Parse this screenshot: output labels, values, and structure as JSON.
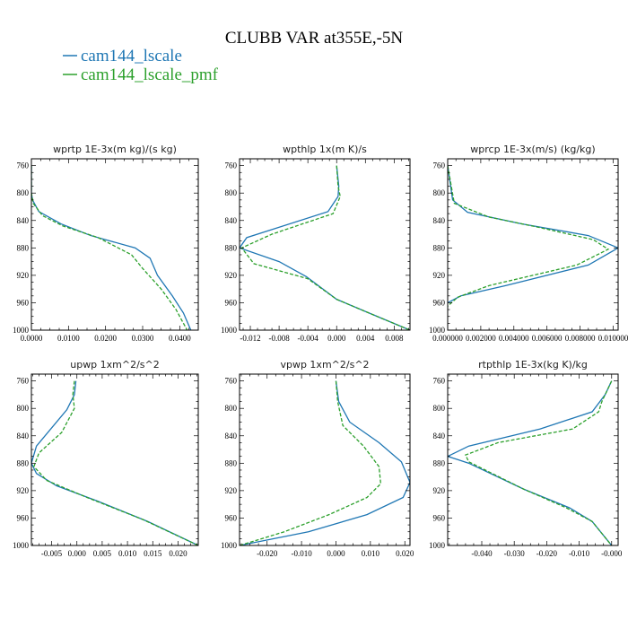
{
  "title": "CLUBB VAR at355E,-5N",
  "legend": [
    {
      "label": "cam144_lscale",
      "color": "#1f77b4"
    },
    {
      "label": "cam144_lscale_pmf",
      "color": "#2ca02c"
    }
  ],
  "chart_data": [
    {
      "type": "line",
      "title": "wprtp  1E-3x(m kg)/(s kg)",
      "xlim": [
        0,
        0.045
      ],
      "ylim": [
        1000,
        750
      ],
      "xticks": [
        0,
        0.01,
        0.02,
        0.03,
        0.04
      ],
      "xtick_labels": [
        "0.0000",
        "0.0100",
        "0.0200",
        "0.0300",
        "0.0400"
      ],
      "yticks": [
        760,
        800,
        840,
        880,
        920,
        960,
        1000
      ],
      "ytick_labels": [
        "760",
        "800",
        "840",
        "880",
        "920",
        "960",
        "1000"
      ],
      "series": [
        {
          "name": "cam144_lscale",
          "x": [
            0,
            0,
            0.0003,
            0.002,
            0.008,
            0.016,
            0.028,
            0.032,
            0.034,
            0.038,
            0.041,
            0.043
          ],
          "y": [
            760,
            800,
            810,
            827,
            845,
            862,
            880,
            895,
            920,
            950,
            975,
            1000
          ]
        },
        {
          "name": "cam144_lscale_pmf",
          "x": [
            0,
            0,
            0.0005,
            0.003,
            0.0085,
            0.018,
            0.027,
            0.03,
            0.035,
            0.039,
            0.042
          ],
          "y": [
            760,
            800,
            815,
            833,
            848,
            865,
            890,
            910,
            940,
            970,
            1000
          ]
        }
      ]
    },
    {
      "type": "line",
      "title": "wpthlp  1x(m K)/s",
      "xlim": [
        -0.0135,
        0.0102
      ],
      "ylim": [
        1000,
        750
      ],
      "xticks": [
        -0.012,
        -0.008,
        -0.004,
        0,
        0.004,
        0.008
      ],
      "xtick_labels": [
        "-0.012",
        "-0.008",
        "-0.004",
        "0.000",
        "0.004",
        "0.008"
      ],
      "yticks": [
        760,
        800,
        840,
        880,
        920,
        960,
        1000
      ],
      "ytick_labels": [
        "760",
        "800",
        "840",
        "880",
        "920",
        "960",
        "1000"
      ],
      "series": [
        {
          "name": "cam144_lscale",
          "x": [
            0,
            0.0003,
            0.0002,
            -0.0012,
            -0.0125,
            -0.0135,
            -0.008,
            -0.0042,
            0,
            0.0045,
            0.0102
          ],
          "y": [
            760,
            790,
            805,
            827,
            865,
            880,
            900,
            922,
            955,
            975,
            1000
          ]
        },
        {
          "name": "cam144_lscale_pmf",
          "x": [
            0,
            0.0002,
            0.0005,
            -0.0005,
            -0.009,
            -0.0132,
            -0.0115,
            -0.004,
            0,
            0.0045,
            0.0102
          ],
          "y": [
            760,
            790,
            805,
            830,
            860,
            880,
            903,
            925,
            955,
            975,
            1000
          ]
        }
      ]
    },
    {
      "type": "line",
      "title": "wprcp  1E-3x(m/s) (kg/kg)",
      "xlim": [
        0,
        0.0103
      ],
      "ylim": [
        1000,
        750
      ],
      "xticks": [
        0,
        0.002,
        0.004,
        0.006,
        0.008,
        0.01
      ],
      "xtick_labels": [
        "0.000000",
        "0.002000",
        "0.004000",
        "0.006000",
        "0.008000",
        "0.010000"
      ],
      "yticks": [
        760,
        800,
        840,
        880,
        920,
        960,
        1000
      ],
      "ytick_labels": [
        "760",
        "800",
        "840",
        "880",
        "920",
        "960",
        "1000"
      ],
      "series": [
        {
          "name": "cam144_lscale",
          "x": [
            0,
            0.0003,
            0.0012,
            0.0045,
            0.0085,
            0.0103,
            0.0085,
            0.0035,
            0.0008,
            0
          ],
          "y": [
            760,
            810,
            828,
            845,
            862,
            880,
            905,
            935,
            950,
            960
          ]
        },
        {
          "name": "cam144_lscale_pmf",
          "x": [
            0,
            0.0004,
            0.0025,
            0.0055,
            0.0088,
            0.0097,
            0.0078,
            0.0025,
            0.0006,
            0
          ],
          "y": [
            760,
            815,
            835,
            850,
            868,
            882,
            905,
            935,
            952,
            965
          ]
        }
      ]
    },
    {
      "type": "line",
      "title": "upwp  1xm^2/s^2",
      "xlim": [
        -0.009,
        0.024
      ],
      "ylim": [
        1000,
        750
      ],
      "xticks": [
        -0.005,
        0,
        0.005,
        0.01,
        0.015,
        0.02
      ],
      "xtick_labels": [
        "-0.005",
        "0.000",
        "0.005",
        "0.010",
        "0.015",
        "0.020"
      ],
      "yticks": [
        760,
        800,
        840,
        880,
        920,
        960,
        1000
      ],
      "ytick_labels": [
        "760",
        "800",
        "840",
        "880",
        "920",
        "960",
        "1000"
      ],
      "series": [
        {
          "name": "cam144_lscale",
          "x": [
            -0.0002,
            -0.0005,
            -0.002,
            -0.008,
            -0.009,
            -0.008,
            -0.004,
            0.004,
            0.014,
            0.024
          ],
          "y": [
            760,
            780,
            802,
            855,
            880,
            895,
            913,
            935,
            965,
            1000
          ]
        },
        {
          "name": "cam144_lscale_pmf",
          "x": [
            -0.0005,
            -0.0008,
            -0.0005,
            -0.003,
            -0.0075,
            -0.0085,
            -0.006,
            0.002,
            0.013,
            0.024
          ],
          "y": [
            760,
            780,
            800,
            835,
            865,
            885,
            905,
            930,
            962,
            1000
          ]
        }
      ]
    },
    {
      "type": "line",
      "title": "vpwp  1xm^2/s^2",
      "xlim": [
        -0.028,
        0.0215
      ],
      "ylim": [
        1000,
        750
      ],
      "xticks": [
        -0.02,
        -0.01,
        0,
        0.01,
        0.02
      ],
      "xtick_labels": [
        "-0.020",
        "-0.010",
        "0.000",
        "0.010",
        "0.020"
      ],
      "yticks": [
        760,
        800,
        840,
        880,
        920,
        960,
        1000
      ],
      "ytick_labels": [
        "760",
        "800",
        "840",
        "880",
        "920",
        "960",
        "1000"
      ],
      "series": [
        {
          "name": "cam144_lscale",
          "x": [
            0,
            0.0008,
            0.004,
            0.0125,
            0.019,
            0.0215,
            0.0195,
            0.009,
            -0.008,
            -0.028
          ],
          "y": [
            760,
            790,
            820,
            850,
            878,
            908,
            930,
            955,
            980,
            1000
          ]
        },
        {
          "name": "cam144_lscale_pmf",
          "x": [
            0,
            0.0005,
            0.002,
            0.008,
            0.0125,
            0.013,
            0.009,
            -0.002,
            -0.015,
            -0.028
          ],
          "y": [
            760,
            790,
            825,
            855,
            885,
            910,
            930,
            955,
            980,
            1000
          ]
        }
      ]
    },
    {
      "type": "line",
      "title": "rtpthlp  1E-3x(kg K)/kg",
      "xlim": [
        -0.0505,
        0.002
      ],
      "ylim": [
        1000,
        750
      ],
      "xticks": [
        -0.04,
        -0.03,
        -0.02,
        -0.01,
        0
      ],
      "xtick_labels": [
        "-0.040",
        "-0.030",
        "-0.020",
        "-0.010",
        "-0.000"
      ],
      "yticks": [
        760,
        800,
        840,
        880,
        920,
        960,
        1000
      ],
      "ytick_labels": [
        "760",
        "800",
        "840",
        "880",
        "920",
        "960",
        "1000"
      ],
      "series": [
        {
          "name": "cam144_lscale",
          "x": [
            0,
            -0.002,
            -0.006,
            -0.022,
            -0.044,
            -0.0505,
            -0.044,
            -0.027,
            -0.013,
            -0.006,
            0
          ],
          "y": [
            760,
            780,
            805,
            830,
            855,
            870,
            880,
            918,
            945,
            965,
            1000
          ]
        },
        {
          "name": "cam144_lscale_pmf",
          "x": [
            0,
            -0.003,
            -0.004,
            -0.012,
            -0.035,
            -0.045,
            -0.044,
            -0.027,
            -0.014,
            -0.006,
            0
          ],
          "y": [
            760,
            790,
            805,
            830,
            850,
            868,
            878,
            918,
            945,
            965,
            1000
          ]
        }
      ]
    }
  ]
}
